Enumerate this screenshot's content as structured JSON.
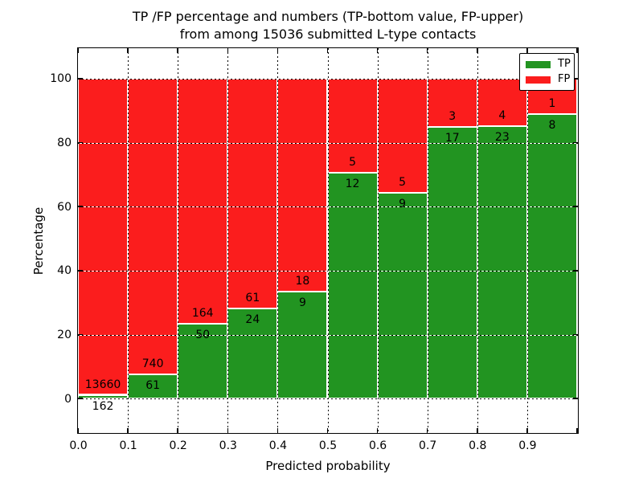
{
  "figure": {
    "title_line1": "TP /FP percentage and numbers (TP-bottom value, FP-upper)",
    "title_line2": "from among 15036 submitted L-type contacts"
  },
  "chart_data": {
    "type": "bar",
    "stacked": true,
    "normalized_to_percent": true,
    "title": "TP /FP percentage and numbers (TP-bottom value, FP-upper) from among 15036 submitted L-type contacts",
    "xlabel": "Predicted probability",
    "ylabel": "Percentage",
    "total_contacts": 15036,
    "xlim": [
      0.0,
      1.0
    ],
    "ylim": [
      -10.5,
      109.5
    ],
    "bin_width": 0.1,
    "grid": true,
    "legend_position": "upper right",
    "legend": [
      {
        "label": "TP",
        "color": "#229421"
      },
      {
        "label": "FP",
        "color": "#fb1d1d"
      }
    ],
    "categories": [
      "0.0-0.1",
      "0.1-0.2",
      "0.2-0.3",
      "0.3-0.4",
      "0.4-0.5",
      "0.5-0.6",
      "0.6-0.7",
      "0.7-0.8",
      "0.8-0.9",
      "0.9-1.0"
    ],
    "series": [
      {
        "name": "TP",
        "values": [
          162,
          61,
          50,
          24,
          9,
          12,
          9,
          17,
          23,
          8
        ]
      },
      {
        "name": "FP",
        "values": [
          13660,
          740,
          164,
          61,
          18,
          5,
          5,
          3,
          4,
          1
        ]
      }
    ],
    "tp_percent": [
      1.17,
      7.62,
      23.36,
      28.24,
      33.33,
      70.59,
      64.29,
      85.0,
      85.19,
      88.89
    ],
    "bins": [
      {
        "x0": 0.0,
        "tp": 162,
        "fp": 13660
      },
      {
        "x0": 0.1,
        "tp": 61,
        "fp": 740
      },
      {
        "x0": 0.2,
        "tp": 50,
        "fp": 164
      },
      {
        "x0": 0.3,
        "tp": 24,
        "fp": 61
      },
      {
        "x0": 0.4,
        "tp": 9,
        "fp": 18
      },
      {
        "x0": 0.5,
        "tp": 12,
        "fp": 5
      },
      {
        "x0": 0.6,
        "tp": 9,
        "fp": 5
      },
      {
        "x0": 0.7,
        "tp": 17,
        "fp": 3
      },
      {
        "x0": 0.8,
        "tp": 23,
        "fp": 4
      },
      {
        "x0": 0.9,
        "tp": 8,
        "fp": 1
      }
    ],
    "x_ticks": [
      {
        "pos": 0.0,
        "label": "0.0"
      },
      {
        "pos": 0.1,
        "label": "0.1"
      },
      {
        "pos": 0.2,
        "label": "0.2"
      },
      {
        "pos": 0.3,
        "label": "0.3"
      },
      {
        "pos": 0.4,
        "label": "0.4"
      },
      {
        "pos": 0.5,
        "label": "0.5"
      },
      {
        "pos": 0.6,
        "label": "0.6"
      },
      {
        "pos": 0.7,
        "label": "0.7"
      },
      {
        "pos": 0.8,
        "label": "0.8"
      },
      {
        "pos": 0.9,
        "label": "0.9"
      },
      {
        "pos": 1.0,
        "label": ""
      }
    ],
    "y_ticks": [
      {
        "pos": 0,
        "label": "0"
      },
      {
        "pos": 20,
        "label": "20"
      },
      {
        "pos": 40,
        "label": "40"
      },
      {
        "pos": 60,
        "label": "60"
      },
      {
        "pos": 80,
        "label": "80"
      },
      {
        "pos": 100,
        "label": "100"
      }
    ],
    "x_gridlines": [
      0.1,
      0.2,
      0.3,
      0.4,
      0.5,
      0.6,
      0.7,
      0.8,
      0.9
    ]
  },
  "colors": {
    "tp": "#229421",
    "fp": "#fb1d1d",
    "grid": "#000000",
    "spine": "#000000",
    "background": "#ffffff"
  }
}
